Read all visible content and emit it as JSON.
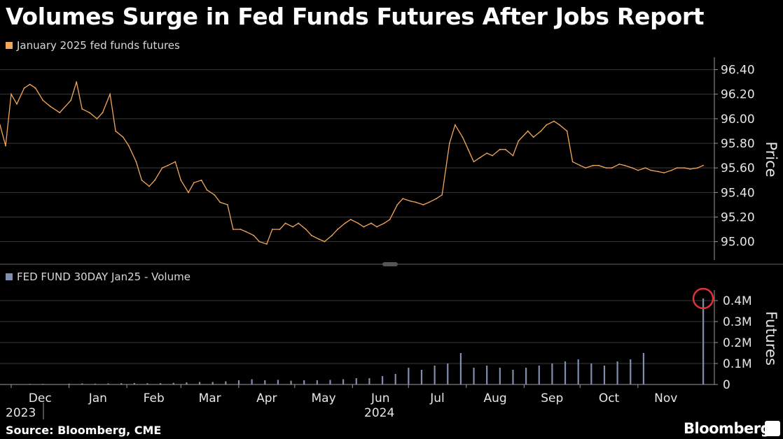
{
  "title": "Volumes Surge in Fed Funds Futures After Jobs Report",
  "source": "Source: Bloomberg, CME",
  "brand": "Bloomberg",
  "brand_icon": "bloomberg-terminal-icon",
  "colors": {
    "price": "#f2a65a",
    "volume": "#7f8fae",
    "highlight": "#e0323c",
    "grid": "#3a3a3a"
  },
  "chart_data": [
    {
      "type": "line",
      "legend": "January 2025 fed funds futures",
      "ylabel": "Price",
      "ylim": [
        94.85,
        96.5
      ],
      "yticks": [
        95.0,
        95.2,
        95.4,
        95.6,
        95.8,
        96.0,
        96.2,
        96.4
      ],
      "ytick_labels": [
        "95.00",
        "95.20",
        "95.40",
        "95.60",
        "95.80",
        "96.00",
        "96.20",
        "96.40"
      ],
      "xlim": [
        "2023-11-25",
        "2024-12-12"
      ],
      "series": [
        {
          "x": [
            "2023-11-25",
            "2023-11-28",
            "2023-12-01",
            "2023-12-04",
            "2023-12-08",
            "2023-12-11",
            "2023-12-14",
            "2023-12-18",
            "2023-12-22",
            "2023-12-27",
            "2024-01-02",
            "2024-01-05",
            "2024-01-08",
            "2024-01-12",
            "2024-01-16",
            "2024-01-19",
            "2024-01-23",
            "2024-01-26",
            "2024-01-30",
            "2024-02-02",
            "2024-02-06",
            "2024-02-09",
            "2024-02-13",
            "2024-02-16",
            "2024-02-20",
            "2024-02-23",
            "2024-02-27",
            "2024-03-01",
            "2024-03-05",
            "2024-03-08",
            "2024-03-12",
            "2024-03-15",
            "2024-03-19",
            "2024-03-22",
            "2024-03-26",
            "2024-03-29",
            "2024-04-02",
            "2024-04-05",
            "2024-04-09",
            "2024-04-12",
            "2024-04-16",
            "2024-04-19",
            "2024-04-23",
            "2024-04-26",
            "2024-04-30",
            "2024-05-03",
            "2024-05-07",
            "2024-05-10",
            "2024-05-14",
            "2024-05-17",
            "2024-05-21",
            "2024-05-24",
            "2024-05-28",
            "2024-05-31",
            "2024-06-04",
            "2024-06-07",
            "2024-06-11",
            "2024-06-14",
            "2024-06-18",
            "2024-06-21",
            "2024-06-25",
            "2024-06-28",
            "2024-07-02",
            "2024-07-05",
            "2024-07-09",
            "2024-07-12",
            "2024-07-16",
            "2024-07-19",
            "2024-07-23",
            "2024-07-26",
            "2024-07-30",
            "2024-08-02",
            "2024-08-05",
            "2024-08-08",
            "2024-08-12",
            "2024-08-15",
            "2024-08-19",
            "2024-08-22",
            "2024-08-26",
            "2024-08-29",
            "2024-09-03",
            "2024-09-06",
            "2024-09-10",
            "2024-09-13",
            "2024-09-17",
            "2024-09-20",
            "2024-09-24",
            "2024-09-27",
            "2024-10-01",
            "2024-10-04",
            "2024-10-08",
            "2024-10-11",
            "2024-10-15",
            "2024-10-18",
            "2024-10-22",
            "2024-10-25",
            "2024-10-29",
            "2024-11-01",
            "2024-11-05",
            "2024-11-08",
            "2024-11-12",
            "2024-11-15",
            "2024-11-19",
            "2024-11-22",
            "2024-11-26",
            "2024-11-29",
            "2024-12-03",
            "2024-12-06"
          ],
          "values": [
            95.95,
            95.78,
            96.2,
            96.12,
            96.25,
            96.28,
            96.25,
            96.15,
            96.1,
            96.05,
            96.15,
            96.3,
            96.08,
            96.05,
            96.0,
            96.05,
            96.2,
            95.9,
            95.85,
            95.78,
            95.65,
            95.5,
            95.45,
            95.5,
            95.6,
            95.62,
            95.65,
            95.5,
            95.4,
            95.48,
            95.5,
            95.42,
            95.38,
            95.32,
            95.3,
            95.1,
            95.1,
            95.08,
            95.05,
            95.0,
            94.98,
            95.1,
            95.1,
            95.15,
            95.12,
            95.15,
            95.1,
            95.05,
            95.02,
            95.0,
            95.05,
            95.1,
            95.15,
            95.18,
            95.15,
            95.12,
            95.15,
            95.12,
            95.15,
            95.18,
            95.3,
            95.35,
            95.33,
            95.32,
            95.3,
            95.32,
            95.35,
            95.38,
            95.8,
            95.95,
            95.85,
            95.75,
            95.65,
            95.68,
            95.72,
            95.7,
            95.75,
            95.75,
            95.7,
            95.82,
            95.9,
            95.85,
            95.9,
            95.95,
            95.98,
            95.95,
            95.9,
            95.65,
            95.62,
            95.6,
            95.62,
            95.62,
            95.6,
            95.6,
            95.63,
            95.62,
            95.6,
            95.58,
            95.6,
            95.58,
            95.57,
            95.56,
            95.58,
            95.6,
            95.6,
            95.59,
            95.6,
            95.62
          ]
        }
      ]
    },
    {
      "type": "bar",
      "legend": "FED FUND 30DAY Jan25 - Volume",
      "ylabel": "Futures",
      "ylim": [
        0,
        0.45
      ],
      "yticks": [
        0,
        0.1,
        0.2,
        0.3,
        0.4
      ],
      "ytick_labels": [
        "0",
        "0.1M",
        "0.2M",
        "0.3M",
        "0.4M"
      ],
      "value_unit": "M",
      "xlim": [
        "2023-11-25",
        "2024-12-12"
      ],
      "x_month_labels": [
        "Dec",
        "Jan",
        "Feb",
        "Mar",
        "Apr",
        "May",
        "Jun",
        "Jul",
        "Aug",
        "Sep",
        "Oct",
        "Nov"
      ],
      "x_year_labels": [
        "2023",
        "2024"
      ],
      "highlight_index": 50,
      "series": [
        {
          "x": [
            "2023-11-27",
            "2023-12-04",
            "2023-12-11",
            "2023-12-18",
            "2023-12-25",
            "2024-01-01",
            "2024-01-08",
            "2024-01-15",
            "2024-01-22",
            "2024-01-29",
            "2024-02-05",
            "2024-02-12",
            "2024-02-19",
            "2024-02-26",
            "2024-03-04",
            "2024-03-11",
            "2024-03-18",
            "2024-03-25",
            "2024-04-01",
            "2024-04-08",
            "2024-04-15",
            "2024-04-22",
            "2024-04-29",
            "2024-05-06",
            "2024-05-13",
            "2024-05-20",
            "2024-05-27",
            "2024-06-03",
            "2024-06-10",
            "2024-06-17",
            "2024-06-24",
            "2024-07-01",
            "2024-07-08",
            "2024-07-15",
            "2024-07-22",
            "2024-07-29",
            "2024-08-05",
            "2024-08-12",
            "2024-08-19",
            "2024-08-26",
            "2024-09-02",
            "2024-09-09",
            "2024-09-16",
            "2024-09-23",
            "2024-09-30",
            "2024-10-07",
            "2024-10-14",
            "2024-10-21",
            "2024-10-28",
            "2024-11-04",
            "2024-12-06"
          ],
          "values": [
            0.002,
            0.002,
            0.003,
            0.003,
            0.002,
            0.004,
            0.005,
            0.004,
            0.005,
            0.006,
            0.007,
            0.006,
            0.006,
            0.008,
            0.01,
            0.012,
            0.012,
            0.015,
            0.02,
            0.025,
            0.02,
            0.022,
            0.018,
            0.02,
            0.02,
            0.022,
            0.025,
            0.03,
            0.03,
            0.04,
            0.05,
            0.08,
            0.07,
            0.09,
            0.1,
            0.15,
            0.08,
            0.09,
            0.08,
            0.07,
            0.08,
            0.09,
            0.1,
            0.11,
            0.12,
            0.1,
            0.09,
            0.11,
            0.12,
            0.15,
            0.41
          ]
        }
      ]
    }
  ]
}
